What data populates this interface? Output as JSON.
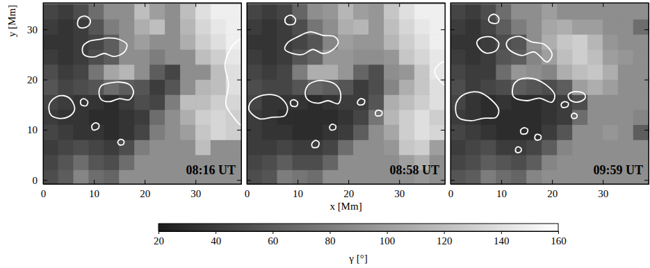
{
  "chart_data": {
    "type": "heatmap",
    "x_label": "x [Mm]",
    "y_label": "y [Mm]",
    "xlim": [
      0,
      39
    ],
    "ylim": [
      -0.8,
      35.3
    ],
    "xticks": [
      0,
      10,
      20,
      30
    ],
    "yticks": [
      0,
      10,
      20,
      30
    ],
    "x_bins": [
      0,
      3,
      6,
      9,
      12,
      15,
      18,
      21,
      24,
      27,
      30,
      33,
      36,
      39
    ],
    "y_bins": [
      -1,
      2,
      5,
      8,
      11,
      14,
      17,
      20,
      23,
      26,
      29,
      32,
      35
    ],
    "colorbar": {
      "label": "γ [°]",
      "range": [
        20,
        160
      ],
      "ticks": [
        20,
        40,
        60,
        80,
        100,
        120,
        140,
        160
      ]
    },
    "panels": [
      {
        "title": "08:16 UT",
        "cells": [
          [
            50,
            60,
            85,
            70,
            65,
            90,
            90,
            90,
            90,
            90,
            90,
            90,
            90
          ],
          [
            45,
            55,
            70,
            55,
            50,
            70,
            90,
            90,
            90,
            90,
            90,
            90,
            90
          ],
          [
            40,
            45,
            50,
            45,
            40,
            50,
            80,
            90,
            90,
            90,
            120,
            90,
            90
          ],
          [
            45,
            40,
            35,
            35,
            30,
            35,
            45,
            80,
            90,
            100,
            125,
            135,
            130
          ],
          [
            40,
            35,
            35,
            30,
            30,
            35,
            40,
            70,
            90,
            110,
            130,
            135,
            130
          ],
          [
            45,
            40,
            35,
            35,
            30,
            40,
            50,
            45,
            80,
            120,
            120,
            130,
            135
          ],
          [
            55,
            45,
            50,
            55,
            70,
            60,
            55,
            40,
            55,
            90,
            115,
            120,
            140
          ],
          [
            50,
            40,
            45,
            75,
            105,
            115,
            90,
            60,
            45,
            90,
            90,
            120,
            140
          ],
          [
            40,
            35,
            40,
            50,
            60,
            90,
            90,
            80,
            90,
            90,
            120,
            130,
            145
          ],
          [
            35,
            35,
            40,
            45,
            60,
            90,
            100,
            90,
            90,
            110,
            130,
            140,
            150
          ],
          [
            40,
            35,
            40,
            55,
            80,
            90,
            110,
            120,
            90,
            115,
            135,
            145,
            150
          ],
          [
            45,
            40,
            50,
            70,
            90,
            90,
            120,
            100,
            90,
            120,
            140,
            150,
            150
          ]
        ],
        "contours": [
          {
            "x": [
              7,
              8,
              9,
              9.3,
              8.5,
              7.3,
              6.8
            ],
            "y": [
              30.5,
              30.3,
              30.8,
              31.8,
              32.6,
              32.4,
              31.5
            ]
          },
          {
            "x": [
              8,
              10,
              12,
              14,
              16,
              16.5,
              15,
              13,
              11,
              9,
              7.8
            ],
            "y": [
              25,
              24.5,
              25.2,
              24.6,
              25.5,
              27,
              28,
              28.3,
              28,
              27.6,
              26.5
            ]
          },
          {
            "x": [
              11.5,
              13,
              15,
              17,
              17.8,
              17,
              15,
              13,
              11.5,
              11
            ],
            "y": [
              16,
              15.6,
              16.2,
              16,
              17.5,
              19,
              19.5,
              19.3,
              18.8,
              17.5
            ]
          },
          {
            "x": [
              1.5,
              3,
              5,
              6.2,
              5.5,
              4,
              2.5,
              1.2
            ],
            "y": [
              13,
              12.3,
              12.6,
              14,
              16,
              16.8,
              16.5,
              15
            ]
          },
          {
            "x": [
              7.5,
              8.5,
              8.8,
              8,
              7.4
            ],
            "y": [
              15,
              14.8,
              15.6,
              16.2,
              15.8
            ]
          },
          {
            "x": [
              9.8,
              10.8,
              11,
              10.3,
              9.6
            ],
            "y": [
              10,
              10.2,
              11,
              11.4,
              10.8
            ]
          },
          {
            "x": [
              15,
              15.8,
              15.9,
              15.2,
              14.7
            ],
            "y": [
              7,
              7.1,
              7.8,
              8.1,
              7.6
            ]
          },
          {
            "x": [
              39,
              37.5,
              36,
              36.5,
              35.8,
              36.8,
              38,
              39
            ],
            "y": [
              11,
              12.5,
              15,
              19,
              23,
              26,
              27.5,
              28
            ]
          }
        ]
      },
      {
        "title": "08:58 UT",
        "tick_labels": "x",
        "cells": [
          [
            50,
            55,
            80,
            75,
            70,
            90,
            90,
            90,
            90,
            90,
            90,
            95,
            90
          ],
          [
            45,
            50,
            60,
            50,
            50,
            65,
            90,
            90,
            90,
            90,
            100,
            110,
            90
          ],
          [
            40,
            40,
            45,
            40,
            40,
            45,
            70,
            90,
            90,
            95,
            125,
            130,
            100
          ],
          [
            40,
            35,
            35,
            30,
            30,
            35,
            40,
            60,
            90,
            105,
            130,
            140,
            135
          ],
          [
            40,
            35,
            30,
            30,
            30,
            30,
            35,
            45,
            75,
            115,
            130,
            140,
            130
          ],
          [
            45,
            35,
            35,
            35,
            30,
            35,
            40,
            40,
            55,
            110,
            120,
            130,
            140
          ],
          [
            50,
            45,
            45,
            55,
            65,
            60,
            55,
            40,
            50,
            85,
            110,
            125,
            140
          ],
          [
            45,
            40,
            45,
            80,
            110,
            110,
            95,
            65,
            50,
            90,
            95,
            125,
            145
          ],
          [
            40,
            35,
            40,
            55,
            65,
            95,
            95,
            90,
            90,
            95,
            125,
            135,
            145
          ],
          [
            35,
            35,
            40,
            45,
            55,
            85,
            100,
            95,
            95,
            115,
            130,
            140,
            150
          ],
          [
            40,
            35,
            40,
            50,
            75,
            90,
            110,
            115,
            95,
            120,
            135,
            145,
            150
          ],
          [
            45,
            40,
            45,
            65,
            90,
            95,
            115,
            100,
            95,
            125,
            140,
            150,
            150
          ]
        ],
        "contours": [
          {
            "x": [
              8,
              9.3,
              9.6,
              8.8,
              7.8,
              7.5
            ],
            "y": [
              31,
              31.1,
              32,
              32.8,
              32.5,
              31.7
            ]
          },
          {
            "x": [
              7.5,
              9,
              11,
              13,
              15,
              17,
              18,
              17.2,
              15,
              12.5,
              10,
              8
            ],
            "y": [
              26,
              25.2,
              25,
              26,
              25.2,
              26,
              27.5,
              28.6,
              28.8,
              29.5,
              28.5,
              27.3
            ]
          },
          {
            "x": [
              12,
              14,
              16,
              18,
              18.5,
              17.5,
              15,
              13,
              12,
              11.5
            ],
            "y": [
              16,
              15.3,
              15.8,
              15.2,
              17,
              19,
              19.8,
              19.5,
              18.8,
              17.2
            ]
          },
          {
            "x": [
              0.5,
              2.5,
              5,
              7.5,
              8,
              6.5,
              4,
              1.5,
              0.5
            ],
            "y": [
              13.8,
              12.2,
              12.5,
              12.8,
              14.5,
              16.5,
              17,
              16.2,
              15
            ]
          },
          {
            "x": [
              8.8,
              9.8,
              10,
              9.2,
              8.6
            ],
            "y": [
              14.8,
              14.7,
              15.5,
              16,
              15.6
            ]
          },
          {
            "x": [
              13,
              14,
              14.2,
              13.5,
              12.8
            ],
            "y": [
              6.5,
              6.6,
              7.5,
              7.9,
              7.2
            ]
          },
          {
            "x": [
              16.5,
              17.4,
              17.5,
              16.8,
              16.3
            ],
            "y": [
              10,
              10.1,
              10.8,
              11.1,
              10.6
            ]
          },
          {
            "x": [
              22,
              23,
              23.2,
              22.4,
              21.8
            ],
            "y": [
              15,
              15.1,
              15.9,
              16.2,
              15.6
            ]
          },
          {
            "x": [
              25.5,
              26.5,
              26.6,
              25.8,
              25.3
            ],
            "y": [
              12.8,
              12.9,
              13.6,
              13.9,
              13.4
            ]
          },
          {
            "x": [
              39,
              37.8,
              37,
              37.8,
              39
            ],
            "y": [
              19,
              20,
              21.5,
              23,
              23.5
            ]
          }
        ]
      },
      {
        "title": "09:59 UT",
        "tick_labels": "x",
        "cells": [
          [
            55,
            60,
            80,
            70,
            65,
            85,
            90,
            90,
            90,
            90,
            90,
            90,
            90
          ],
          [
            45,
            50,
            60,
            55,
            50,
            60,
            85,
            90,
            90,
            90,
            90,
            90,
            90
          ],
          [
            40,
            45,
            50,
            40,
            40,
            45,
            60,
            85,
            90,
            90,
            90,
            90,
            90
          ],
          [
            45,
            40,
            35,
            30,
            30,
            30,
            40,
            55,
            90,
            90,
            95,
            90,
            60
          ],
          [
            40,
            35,
            30,
            30,
            30,
            30,
            35,
            40,
            70,
            90,
            90,
            90,
            85
          ],
          [
            45,
            35,
            30,
            35,
            30,
            30,
            35,
            40,
            50,
            90,
            90,
            90,
            90
          ],
          [
            50,
            40,
            45,
            50,
            60,
            55,
            50,
            60,
            100,
            110,
            100,
            90,
            90
          ],
          [
            45,
            40,
            40,
            70,
            95,
            90,
            85,
            110,
            120,
            125,
            110,
            90,
            90
          ],
          [
            40,
            35,
            40,
            55,
            60,
            85,
            100,
            120,
            130,
            120,
            100,
            95,
            90
          ],
          [
            35,
            35,
            40,
            50,
            55,
            90,
            110,
            125,
            130,
            115,
            95,
            90,
            90
          ],
          [
            40,
            35,
            45,
            60,
            80,
            90,
            105,
            110,
            100,
            100,
            90,
            90,
            70
          ],
          [
            45,
            40,
            50,
            70,
            90,
            90,
            100,
            90,
            90,
            90,
            90,
            90,
            90
          ]
        ],
        "contours": [
          {
            "x": [
              8,
              9.3,
              9.5,
              8.7,
              7.8,
              7.5
            ],
            "y": [
              31.3,
              31.3,
              32.3,
              33,
              32.7,
              31.8
            ]
          },
          {
            "x": [
              5.5,
              7,
              9,
              9.5,
              8,
              6,
              5.2
            ],
            "y": [
              26.5,
              25.3,
              25.8,
              27.3,
              28.5,
              28.3,
              27.5
            ]
          },
          {
            "x": [
              11.5,
              14,
              16.5,
              19,
              20,
              18.5,
              16,
              13.5,
              11.5,
              11
            ],
            "y": [
              26,
              24.8,
              25.5,
              23.5,
              25,
              27,
              27.5,
              28.6,
              28,
              27
            ]
          },
          {
            "x": [
              12.5,
              15,
              17.5,
              20,
              20.5,
              18,
              15,
              12.8,
              12.2
            ],
            "y": [
              16.5,
              15.8,
              16.3,
              15.5,
              17,
              19.5,
              20.3,
              19.5,
              18
            ]
          },
          {
            "x": [
              1.5,
              4,
              6.5,
              9,
              9.5,
              8,
              5.5,
              3,
              1.5,
              1
            ],
            "y": [
              12.5,
              11.8,
              12.3,
              12.5,
              14,
              16,
              17.5,
              17.2,
              16,
              14.5
            ]
          },
          {
            "x": [
              14,
              15,
              15.2,
              14.4,
              13.8
            ],
            "y": [
              9.2,
              9.3,
              10.1,
              10.4,
              9.9
            ]
          },
          {
            "x": [
              16.8,
              17.7,
              17.8,
              17,
              16.6
            ],
            "y": [
              8,
              8.1,
              8.8,
              9.1,
              8.6
            ]
          },
          {
            "x": [
              22,
              23,
              23.2,
              22.4,
              21.8
            ],
            "y": [
              14.5,
              14.6,
              15.3,
              15.6,
              15.1
            ]
          },
          {
            "x": [
              24,
              24.8,
              24.9,
              24.2,
              23.8
            ],
            "y": [
              12.3,
              12.4,
              13,
              13.3,
              12.9
            ]
          },
          {
            "x": [
              23.5,
              25,
              26.5,
              26.3,
              24.5,
              23.2
            ],
            "y": [
              16,
              15.5,
              16.3,
              17.2,
              17.6,
              17
            ]
          },
          {
            "x": [
              13,
              13.8,
              13.9,
              13.2,
              12.8
            ],
            "y": [
              5.5,
              5.6,
              6.3,
              6.6,
              6.1
            ]
          }
        ]
      }
    ]
  }
}
